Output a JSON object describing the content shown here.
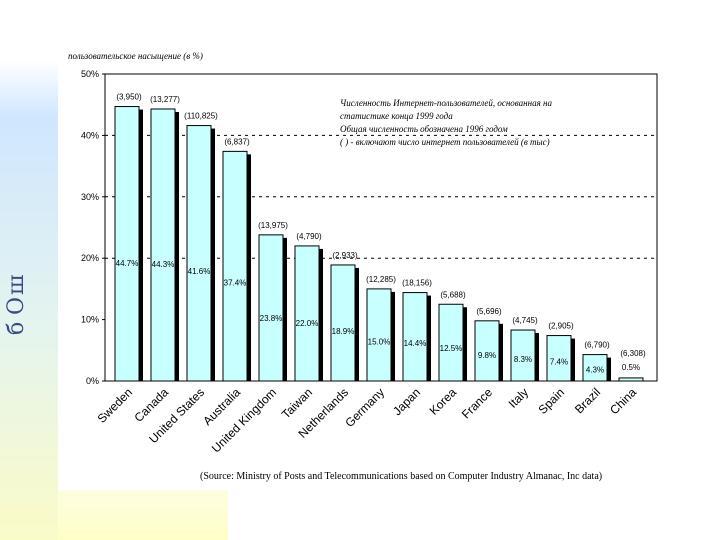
{
  "slide": {
    "side_letters": [
      "ш",
      "О",
      "б"
    ]
  },
  "chart_data": {
    "type": "bar",
    "ylabel": "пользовательское насыщение (в %)",
    "ylim": [
      0,
      50
    ],
    "yticks": [
      "0%",
      "10%",
      "20%",
      "30%",
      "40%",
      "50%"
    ],
    "ytick_values": [
      0,
      10,
      20,
      30,
      40,
      50
    ],
    "dashed_gridlines": [
      20,
      30,
      40
    ],
    "categories": [
      "Sweden",
      "Canada",
      "United States",
      "Australia",
      "United Kingdom",
      "Taiwan",
      "Netherlands",
      "Germany",
      "Japan",
      "Korea",
      "France",
      "Italy",
      "Spain",
      "Brazil",
      "China"
    ],
    "values": [
      44.7,
      44.3,
      41.6,
      37.4,
      23.8,
      22.0,
      18.9,
      15.0,
      14.4,
      12.5,
      9.8,
      8.3,
      7.4,
      4.3,
      0.5
    ],
    "value_labels": [
      "44.7%",
      "44.3%",
      "41.6%",
      "37.4%",
      "23.8%",
      "22.0%",
      "18.9%",
      "15.0%",
      "14.4%",
      "12.5%",
      "9.8%",
      "8.3%",
      "7.4%",
      "4.3%",
      "0.5%"
    ],
    "users_thousands": [
      "(3,950)",
      "(13,277)",
      "(110,825)",
      "(6,837)",
      "(13,975)",
      "(4,790)",
      "(2,933)",
      "(12,285)",
      "(18,156)",
      "(5,688)",
      "(5,696)",
      "(4,745)",
      "(2,905)",
      "(6,790)",
      "(6,308)"
    ],
    "note_lines": [
      "Численность Интернет-пользователей, основанная на",
      "статистике конца 1999 года",
      "Общая численность обозначена 1996 годом",
      "( ) - включают число интернет пользователей (в тыс)"
    ],
    "source": "(Source: Ministry of Posts and Telecommunications based on Computer Industry Almanac, Inc data)",
    "colors": {
      "bar_fill": "#c8ffff",
      "bar_shadow": "#000000",
      "bar_stroke": "#000000"
    }
  }
}
